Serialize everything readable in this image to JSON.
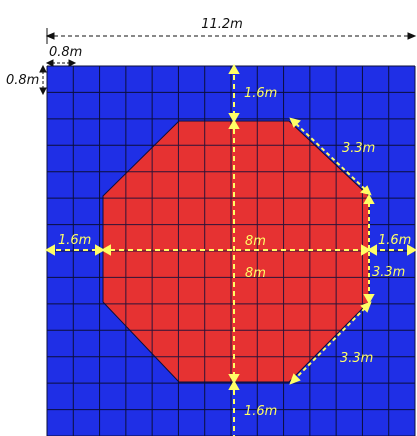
{
  "diagram": {
    "labels": {
      "total_width": "11.2m",
      "grid_cell_width": "0.8m",
      "grid_cell_height": "0.8m",
      "top_margin": "1.6m",
      "bottom_margin": "1.6m",
      "left_margin": "1.6m",
      "right_margin": "1.6m",
      "octagon_width": "8m",
      "octagon_height": "8m",
      "diag_top_right": "3.3m",
      "diag_bottom_right": "3.3m",
      "right_side_height": "3.3m"
    },
    "colors": {
      "background_grid": "#1f2fe6",
      "grid_line": "#0b0f3a",
      "octagon": "#e63232",
      "dimension_line": "#ffff66",
      "outer_dimension_line": "#111111"
    }
  }
}
